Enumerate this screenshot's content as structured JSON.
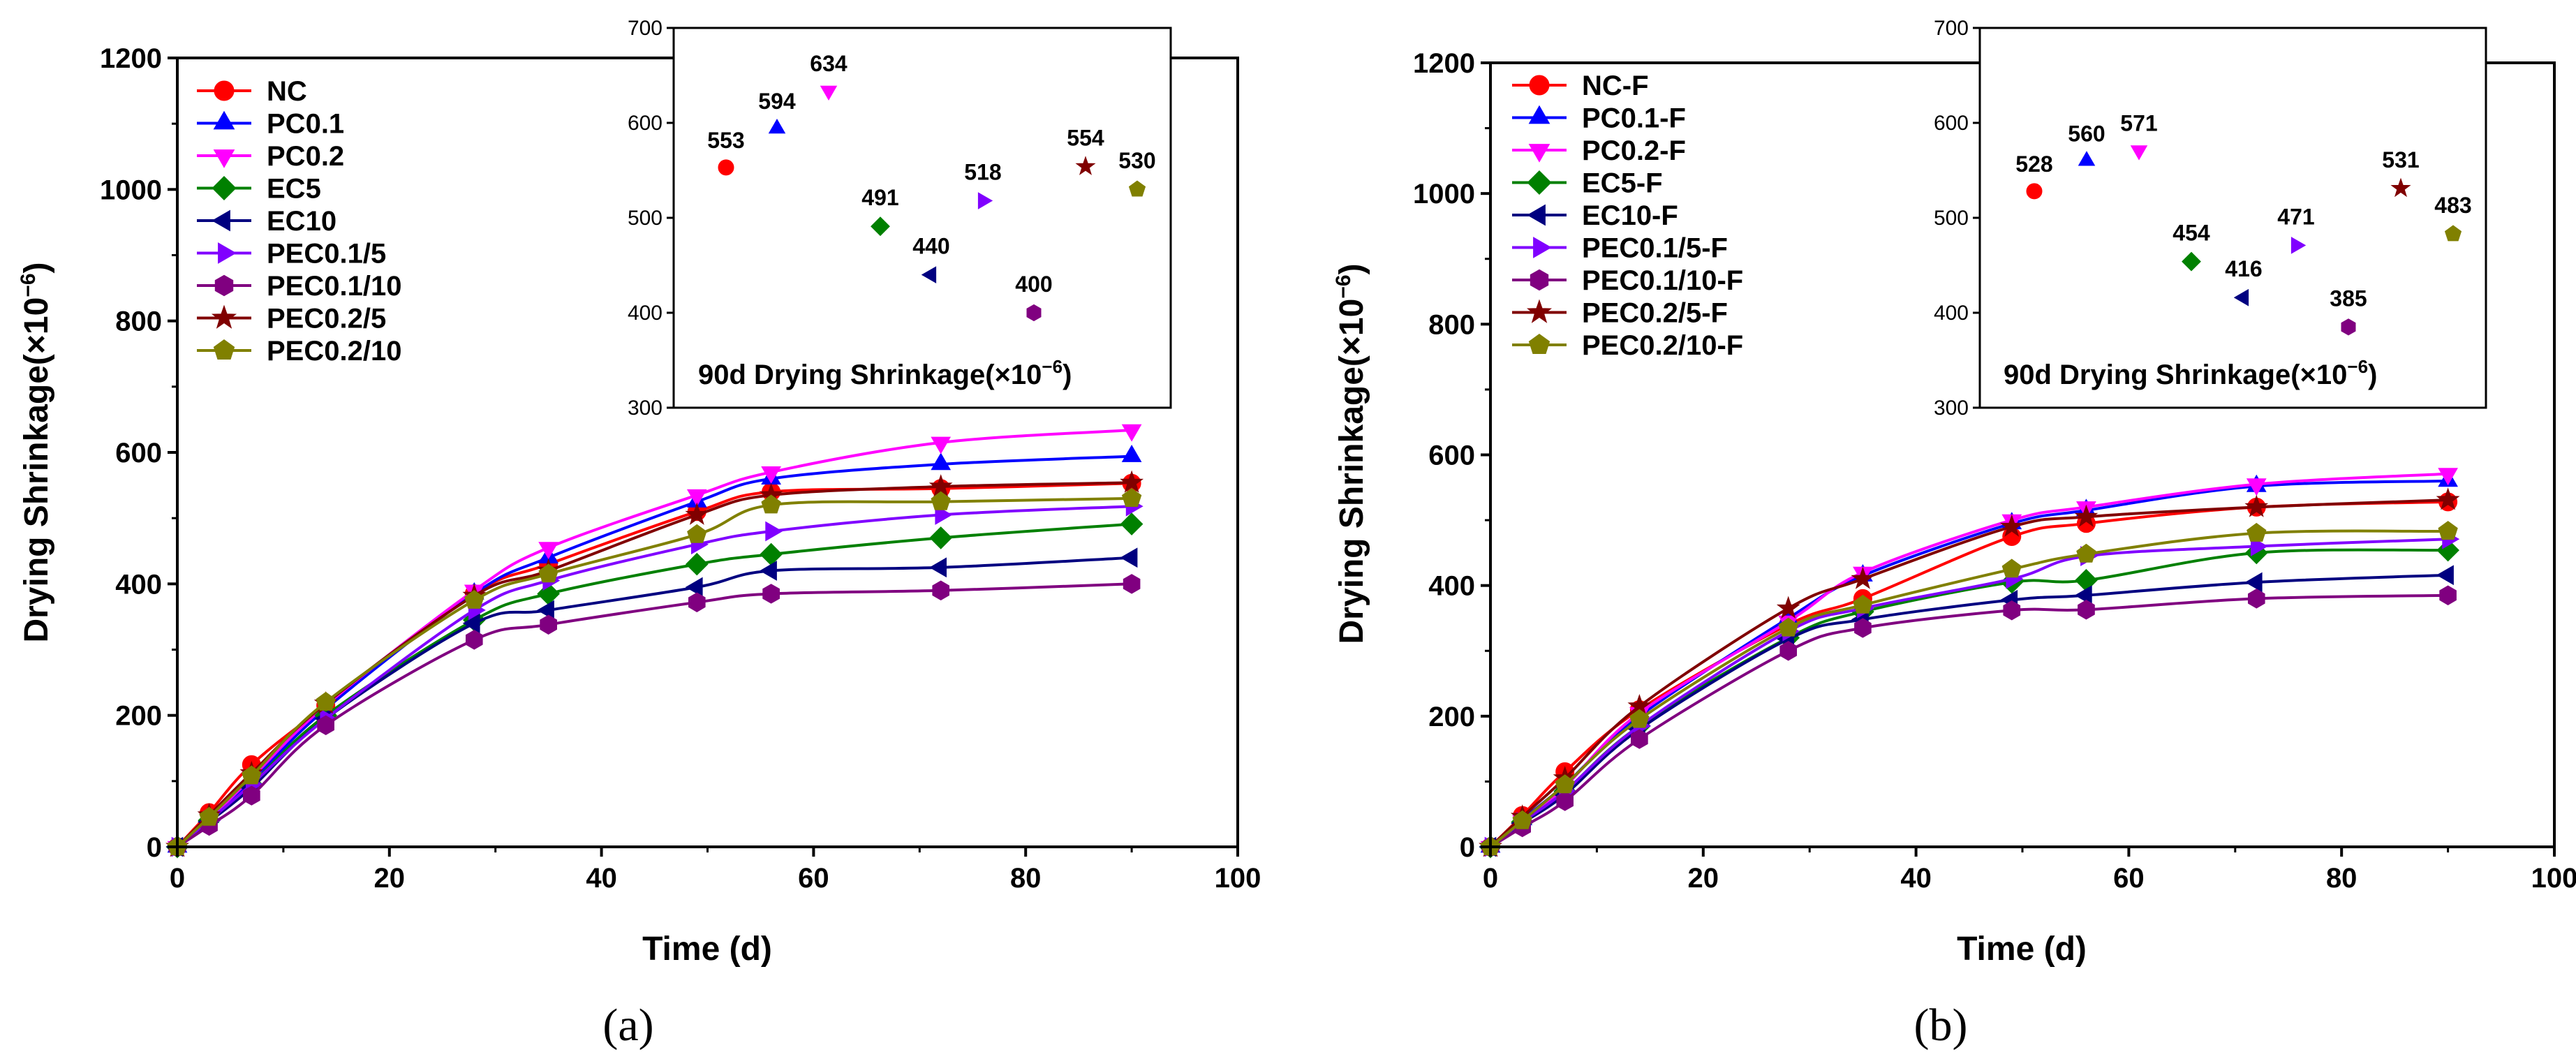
{
  "chart_data": [
    {
      "type": "line",
      "panel_label": "(a)",
      "xlabel": "Time (d)",
      "ylabel": "Drying Shrinkage(×10",
      "ylabel_exp": "−6",
      "ylabel_close": ")",
      "xlim": [
        0,
        100
      ],
      "ylim": [
        0,
        1200
      ],
      "x_ticks": [
        "0",
        "20",
        "40",
        "60",
        "80",
        "100"
      ],
      "y_ticks": [
        "0",
        "200",
        "400",
        "600",
        "800",
        "1000",
        "1200"
      ],
      "x": [
        0,
        3,
        7,
        14,
        28,
        35,
        49,
        56,
        72,
        90
      ],
      "series": [
        {
          "name": "NC",
          "color": "#ff0000",
          "marker": "circle",
          "values": [
            0,
            52,
            125,
            215,
            385,
            430,
            510,
            540,
            545,
            553
          ]
        },
        {
          "name": "PC0.1",
          "color": "#0000ff",
          "marker": "triangle-up",
          "values": [
            0,
            45,
            100,
            210,
            385,
            440,
            525,
            560,
            582,
            594
          ]
        },
        {
          "name": "PC0.2",
          "color": "#ff00ff",
          "marker": "triangle-down",
          "values": [
            0,
            42,
            105,
            215,
            390,
            455,
            535,
            570,
            615,
            634
          ]
        },
        {
          "name": "EC5",
          "color": "#008000",
          "marker": "diamond",
          "values": [
            0,
            40,
            95,
            200,
            345,
            385,
            430,
            445,
            470,
            491
          ]
        },
        {
          "name": "EC10",
          "color": "#000080",
          "marker": "triangle-left",
          "values": [
            0,
            38,
            90,
            195,
            340,
            360,
            395,
            420,
            425,
            440
          ]
        },
        {
          "name": "PEC0.1/5",
          "color": "#8000ff",
          "marker": "triangle-right",
          "values": [
            0,
            40,
            95,
            195,
            360,
            405,
            460,
            480,
            505,
            518
          ]
        },
        {
          "name": "PEC0.1/10",
          "color": "#800080",
          "marker": "hexagon",
          "values": [
            0,
            32,
            78,
            185,
            315,
            338,
            372,
            385,
            390,
            400
          ]
        },
        {
          "name": "PEC0.2/5",
          "color": "#800000",
          "marker": "star",
          "values": [
            0,
            48,
            112,
            218,
            382,
            420,
            505,
            535,
            548,
            554
          ]
        },
        {
          "name": "PEC0.2/10",
          "color": "#808000",
          "marker": "pentagon",
          "values": [
            0,
            45,
            108,
            220,
            375,
            415,
            475,
            520,
            525,
            530
          ]
        }
      ],
      "inset": {
        "title": "90d Drying Shrinkage(×10",
        "title_exp": "−6",
        "title_close": ")",
        "ylim": [
          300,
          700
        ],
        "y_ticks": [
          "300",
          "400",
          "500",
          "600",
          "700"
        ],
        "values": [
          553,
          594,
          634,
          491,
          440,
          518,
          400,
          554,
          530
        ],
        "labels": [
          "553",
          "594",
          "634",
          "491",
          "440",
          "518",
          "400",
          "554",
          "530"
        ]
      }
    },
    {
      "type": "line",
      "panel_label": "(b)",
      "xlabel": "Time (d)",
      "ylabel": "Drying Shrinkage(×10",
      "ylabel_exp": "−6",
      "ylabel_close": ")",
      "xlim": [
        0,
        100
      ],
      "ylim": [
        0,
        1200
      ],
      "x_ticks": [
        "0",
        "20",
        "40",
        "60",
        "80",
        "100"
      ],
      "y_ticks": [
        "0",
        "200",
        "400",
        "600",
        "800",
        "1000",
        "1200"
      ],
      "x": [
        0,
        3,
        7,
        14,
        28,
        35,
        49,
        56,
        72,
        90
      ],
      "series": [
        {
          "name": "NC-F",
          "color": "#ff0000",
          "marker": "circle",
          "values": [
            0,
            48,
            115,
            210,
            340,
            380,
            475,
            495,
            520,
            528
          ]
        },
        {
          "name": "PC0.1-F",
          "color": "#0000ff",
          "marker": "triangle-up",
          "values": [
            0,
            42,
            95,
            200,
            350,
            415,
            495,
            515,
            552,
            560
          ]
        },
        {
          "name": "PC0.2-F",
          "color": "#ff00ff",
          "marker": "triangle-down",
          "values": [
            0,
            40,
            92,
            205,
            345,
            420,
            500,
            520,
            555,
            571
          ]
        },
        {
          "name": "EC5-F",
          "color": "#008000",
          "marker": "diamond",
          "values": [
            0,
            38,
            85,
            185,
            320,
            360,
            405,
            408,
            450,
            454
          ]
        },
        {
          "name": "EC10-F",
          "color": "#000080",
          "marker": "triangle-left",
          "values": [
            0,
            36,
            80,
            180,
            318,
            348,
            378,
            385,
            405,
            416
          ]
        },
        {
          "name": "PEC0.1/5-F",
          "color": "#8000ff",
          "marker": "triangle-right",
          "values": [
            0,
            38,
            85,
            185,
            330,
            365,
            410,
            445,
            460,
            471
          ]
        },
        {
          "name": "PEC0.1/10-F",
          "color": "#800080",
          "marker": "hexagon",
          "values": [
            0,
            30,
            70,
            165,
            300,
            335,
            362,
            363,
            380,
            385
          ]
        },
        {
          "name": "PEC0.2/5-F",
          "color": "#800000",
          "marker": "star",
          "values": [
            0,
            46,
            105,
            215,
            365,
            410,
            490,
            505,
            520,
            531
          ]
        },
        {
          "name": "PEC0.2/10-F",
          "color": "#808000",
          "marker": "pentagon",
          "values": [
            0,
            40,
            95,
            195,
            335,
            370,
            425,
            448,
            480,
            483
          ]
        }
      ],
      "inset": {
        "title": "90d Drying Shrinkage(×10",
        "title_exp": "−6",
        "title_close": ")",
        "ylim": [
          300,
          700
        ],
        "y_ticks": [
          "300",
          "400",
          "500",
          "600",
          "700"
        ],
        "values": [
          528,
          560,
          571,
          454,
          416,
          471,
          385,
          531,
          483
        ],
        "labels": [
          "528",
          "560",
          "571",
          "454",
          "416",
          "471",
          "385",
          "531",
          "483"
        ]
      }
    }
  ]
}
